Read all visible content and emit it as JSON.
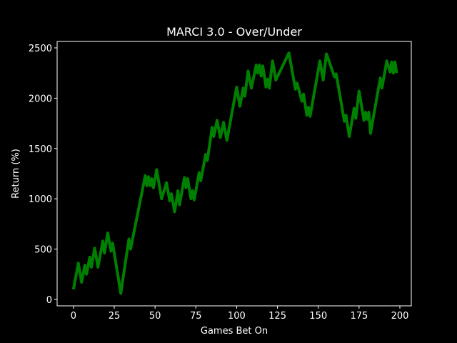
{
  "chart_data": {
    "type": "line",
    "title": "MARCI 3.0 - Over/Under",
    "x_label": "Games Bet On",
    "y_label": "Return (%)",
    "xlim": [
      -10,
      207
    ],
    "ylim": [
      -64,
      2564
    ],
    "xticks": [
      0,
      25,
      50,
      75,
      100,
      125,
      150,
      175,
      200
    ],
    "yticks": [
      0,
      500,
      1000,
      1500,
      2000,
      2500
    ],
    "series": [
      {
        "color": "#008000",
        "x": [
          0,
          3,
          5,
          7,
          8,
          10,
          11,
          13,
          15,
          18,
          19,
          21,
          23,
          24,
          29,
          34,
          35,
          44,
          45,
          46,
          47,
          48,
          49,
          51,
          54,
          57,
          59,
          60,
          62,
          64,
          65,
          68,
          69,
          70,
          72,
          73,
          74,
          77,
          78,
          81,
          82,
          85,
          86,
          88,
          90,
          92,
          94,
          100,
          102,
          104,
          105,
          107,
          109,
          112,
          113,
          114,
          115,
          116,
          118,
          119,
          120,
          122,
          124,
          132,
          136,
          137,
          140,
          141,
          143,
          144,
          145,
          151,
          153,
          155,
          160,
          161,
          166,
          167,
          169,
          172,
          173,
          175,
          178,
          179,
          180,
          181,
          182,
          188,
          189,
          192,
          194,
          195,
          196,
          197,
          198
        ],
        "values": [
          100,
          360,
          170,
          340,
          250,
          420,
          320,
          510,
          320,
          580,
          460,
          660,
          480,
          560,
          60,
          600,
          500,
          1230,
          1130,
          1220,
          1130,
          1200,
          1110,
          1290,
          1000,
          1160,
          980,
          1050,
          870,
          1080,
          940,
          1210,
          1110,
          1200,
          1000,
          1080,
          990,
          1260,
          1180,
          1440,
          1380,
          1710,
          1620,
          1780,
          1610,
          1760,
          1580,
          2110,
          1920,
          2100,
          2020,
          2270,
          2100,
          2330,
          2250,
          2330,
          2220,
          2320,
          2110,
          2190,
          2100,
          2370,
          2180,
          2450,
          2090,
          2150,
          1970,
          2040,
          1830,
          1910,
          1820,
          2370,
          2180,
          2440,
          2210,
          2240,
          1770,
          1830,
          1620,
          1900,
          1800,
          2070,
          1780,
          1860,
          1790,
          1860,
          1650,
          2200,
          2100,
          2370,
          2260,
          2360,
          2250,
          2360,
          2250
        ]
      }
    ]
  }
}
